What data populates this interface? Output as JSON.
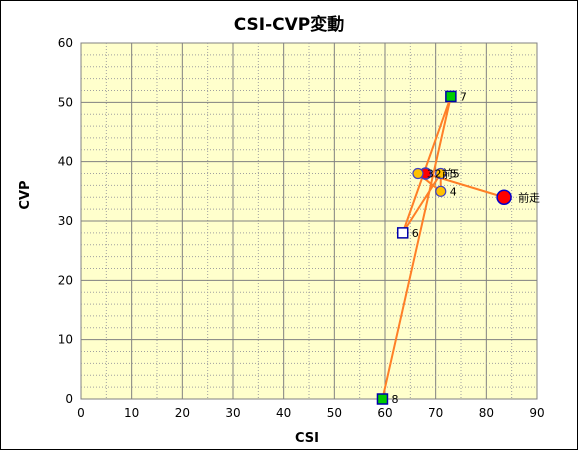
{
  "chart_data": {
    "type": "scatter",
    "title": "CSI-CVP変動",
    "xlabel": "CSI",
    "ylabel": "CVP",
    "xlim": [
      0,
      90
    ],
    "ylim": [
      0,
      60
    ],
    "x_ticks": [
      "0",
      "10",
      "20",
      "30",
      "40",
      "50",
      "60",
      "70",
      "80",
      "90"
    ],
    "y_ticks": [
      "0",
      "10",
      "20",
      "30",
      "40",
      "50",
      "60"
    ],
    "grid": true,
    "colors": {
      "plot_background": "#ffffcc",
      "grid": "#808080",
      "line": "#ff7f27",
      "prev_marker_fill": "#ff0000",
      "prev_marker_edge": "#0000cc",
      "circle_fill": "#ffc000",
      "circle_edge": "#4040c0",
      "square_green": "#00cc00",
      "square_white": "#ffffff",
      "square_edge": "#0000aa"
    },
    "points": [
      {
        "label": "前走",
        "x": 83.5,
        "y": 34,
        "marker": "circle-large-red"
      },
      {
        "label": "2",
        "x": 68,
        "y": 38,
        "marker": "circle-red"
      },
      {
        "label": "3",
        "x": 66.5,
        "y": 38,
        "marker": "circle"
      },
      {
        "label": "4",
        "x": 71,
        "y": 35,
        "marker": "circle"
      },
      {
        "label": "5",
        "x": 71,
        "y": 38,
        "marker": "circle"
      },
      {
        "label": "6",
        "x": 63.5,
        "y": 28,
        "marker": "square-white"
      },
      {
        "label": "7",
        "x": 73,
        "y": 51,
        "marker": "square-green"
      },
      {
        "label": "8",
        "x": 59.5,
        "y": 0,
        "marker": "square-green"
      }
    ],
    "annotations": [
      "前5",
      "前走"
    ]
  }
}
